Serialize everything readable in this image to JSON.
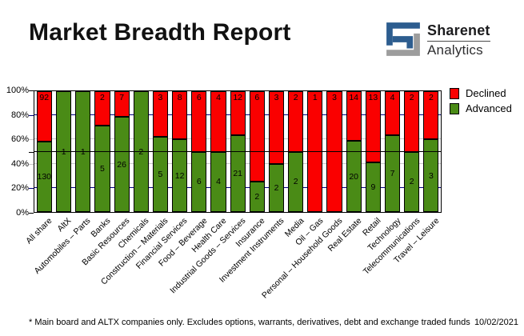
{
  "header": {
    "title": "Market Breadth Report",
    "logo": {
      "brand": "Sharenet",
      "suffix": "Analytics"
    }
  },
  "chart_data": {
    "type": "bar",
    "variant": "stacked-percent-column",
    "title": "Market Breadth Report",
    "categories": [
      "All share",
      "AltX",
      "Automobiles – Parts",
      "Banks",
      "Basic Resources",
      "Chemicals",
      "Construction – Materials",
      "Financial Services",
      "Food – Beverage",
      "Health Care",
      "Industrial Goods – Services",
      "Insurance",
      "Investment Instruments",
      "Media",
      "Oil – Gas",
      "Personal – Household Goods",
      "Real Estate",
      "Retail",
      "Technology",
      "Telecommunications",
      "Travel – Leisure"
    ],
    "series": [
      {
        "name": "Declined",
        "color": "#fa0000",
        "values": [
          92,
          0,
          0,
          2,
          7,
          0,
          3,
          8,
          6,
          4,
          12,
          6,
          3,
          2,
          1,
          3,
          14,
          13,
          4,
          2,
          2
        ]
      },
      {
        "name": "Advanced",
        "color": "#4a8b16",
        "values": [
          130,
          1,
          1,
          5,
          26,
          2,
          5,
          12,
          6,
          4,
          21,
          2,
          2,
          2,
          0,
          0,
          20,
          9,
          7,
          2,
          3
        ]
      }
    ],
    "y_axis": {
      "ticks": [
        "0%",
        "20%",
        "40%",
        "60%",
        "80%",
        "100%"
      ],
      "min": 0,
      "max": 100
    },
    "gridlines": {
      "navy_levels": [
        20,
        80
      ],
      "gray_levels": [
        40,
        60
      ],
      "reference_line_level": 50
    },
    "legend_position": "top-right",
    "legend": [
      "Declined",
      "Advanced"
    ]
  },
  "colors": {
    "declined": "#fa0000",
    "advanced": "#4a8b16",
    "grid_navy": "#000080",
    "grid_gray": "#c9c9c9",
    "reference_line": "#000000",
    "logo_blue": "#2d5d8f",
    "logo_gray": "#9d9d9d"
  },
  "footer": {
    "note": "* Main board and ALTX companies only. Excludes options, warrants, derivatives, debt and exchange traded funds",
    "date": "10/02/2021"
  }
}
